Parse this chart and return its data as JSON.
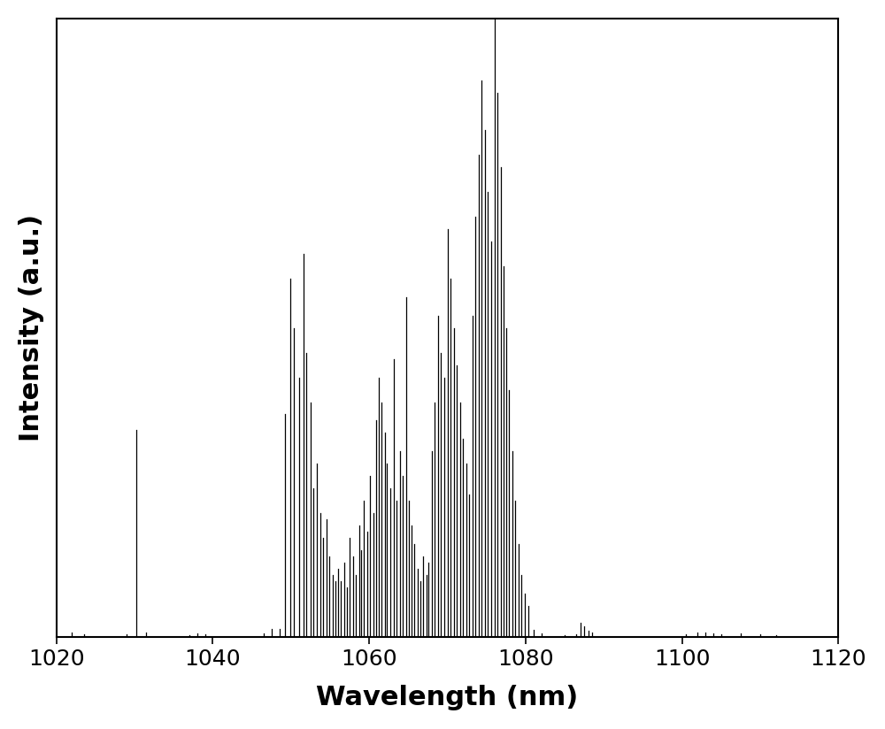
{
  "xlabel": "Wavelength (nm)",
  "ylabel": "Intensity (a.u.)",
  "xlim": [
    1020,
    1120
  ],
  "ylim": [
    0,
    1.0
  ],
  "background_color": "#ffffff",
  "line_color": "#000000",
  "tick_label_fontsize": 18,
  "axis_label_fontsize": 22,
  "line_width": 0.9,
  "xticks": [
    1020,
    1040,
    1060,
    1080,
    1100,
    1120
  ],
  "peaks": [
    [
      1022.0,
      0.007
    ],
    [
      1023.5,
      0.005
    ],
    [
      1029.0,
      0.005
    ],
    [
      1030.2,
      0.335
    ],
    [
      1031.5,
      0.007
    ],
    [
      1037.0,
      0.004
    ],
    [
      1038.0,
      0.006
    ],
    [
      1039.0,
      0.005
    ],
    [
      1046.5,
      0.006
    ],
    [
      1047.5,
      0.013
    ],
    [
      1048.5,
      0.014
    ],
    [
      1049.2,
      0.36
    ],
    [
      1049.9,
      0.58
    ],
    [
      1050.4,
      0.5
    ],
    [
      1051.0,
      0.42
    ],
    [
      1051.6,
      0.62
    ],
    [
      1052.0,
      0.46
    ],
    [
      1052.5,
      0.38
    ],
    [
      1052.9,
      0.24
    ],
    [
      1053.3,
      0.28
    ],
    [
      1053.7,
      0.2
    ],
    [
      1054.1,
      0.16
    ],
    [
      1054.5,
      0.19
    ],
    [
      1054.9,
      0.13
    ],
    [
      1055.3,
      0.1
    ],
    [
      1055.7,
      0.09
    ],
    [
      1056.0,
      0.11
    ],
    [
      1056.4,
      0.09
    ],
    [
      1056.8,
      0.12
    ],
    [
      1057.2,
      0.08
    ],
    [
      1057.5,
      0.16
    ],
    [
      1057.9,
      0.13
    ],
    [
      1058.3,
      0.1
    ],
    [
      1058.7,
      0.18
    ],
    [
      1059.0,
      0.14
    ],
    [
      1059.3,
      0.22
    ],
    [
      1059.7,
      0.17
    ],
    [
      1060.1,
      0.26
    ],
    [
      1060.5,
      0.2
    ],
    [
      1060.9,
      0.35
    ],
    [
      1061.2,
      0.42
    ],
    [
      1061.6,
      0.38
    ],
    [
      1062.0,
      0.33
    ],
    [
      1062.3,
      0.28
    ],
    [
      1062.7,
      0.24
    ],
    [
      1063.1,
      0.45
    ],
    [
      1063.5,
      0.22
    ],
    [
      1063.9,
      0.3
    ],
    [
      1064.3,
      0.26
    ],
    [
      1064.7,
      0.55
    ],
    [
      1065.1,
      0.22
    ],
    [
      1065.4,
      0.18
    ],
    [
      1065.8,
      0.15
    ],
    [
      1066.2,
      0.11
    ],
    [
      1066.5,
      0.09
    ],
    [
      1066.9,
      0.13
    ],
    [
      1067.3,
      0.1
    ],
    [
      1067.6,
      0.12
    ],
    [
      1068.0,
      0.3
    ],
    [
      1068.4,
      0.38
    ],
    [
      1068.8,
      0.52
    ],
    [
      1069.2,
      0.46
    ],
    [
      1069.6,
      0.42
    ],
    [
      1070.0,
      0.66
    ],
    [
      1070.4,
      0.58
    ],
    [
      1070.8,
      0.5
    ],
    [
      1071.2,
      0.44
    ],
    [
      1071.6,
      0.38
    ],
    [
      1072.0,
      0.32
    ],
    [
      1072.4,
      0.28
    ],
    [
      1072.8,
      0.23
    ],
    [
      1073.2,
      0.52
    ],
    [
      1073.6,
      0.68
    ],
    [
      1074.0,
      0.78
    ],
    [
      1074.4,
      0.9
    ],
    [
      1074.8,
      0.82
    ],
    [
      1075.2,
      0.72
    ],
    [
      1075.6,
      0.64
    ],
    [
      1076.0,
      1.0
    ],
    [
      1076.4,
      0.88
    ],
    [
      1076.8,
      0.76
    ],
    [
      1077.2,
      0.6
    ],
    [
      1077.5,
      0.5
    ],
    [
      1077.9,
      0.4
    ],
    [
      1078.3,
      0.3
    ],
    [
      1078.7,
      0.22
    ],
    [
      1079.1,
      0.15
    ],
    [
      1079.5,
      0.1
    ],
    [
      1079.9,
      0.07
    ],
    [
      1080.3,
      0.05
    ],
    [
      1081.0,
      0.012
    ],
    [
      1082.0,
      0.006
    ],
    [
      1085.0,
      0.004
    ],
    [
      1086.5,
      0.005
    ],
    [
      1087.0,
      0.024
    ],
    [
      1087.5,
      0.018
    ],
    [
      1088.0,
      0.01
    ],
    [
      1088.5,
      0.007
    ],
    [
      1100.5,
      0.005
    ],
    [
      1102.0,
      0.007
    ],
    [
      1103.0,
      0.008
    ],
    [
      1104.0,
      0.006
    ],
    [
      1105.0,
      0.005
    ],
    [
      1107.5,
      0.006
    ],
    [
      1110.0,
      0.005
    ],
    [
      1112.0,
      0.004
    ]
  ]
}
